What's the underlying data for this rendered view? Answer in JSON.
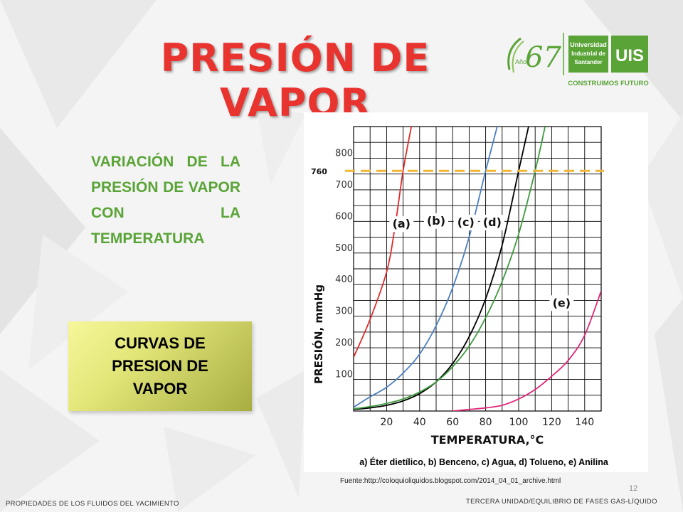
{
  "slide": {
    "title": "PRESIÓN DE VAPOR",
    "subtitle": "VARIACIÓN DE LA PRESIÓN DE VAPOR CON LA TEMPERATURA",
    "box_label": "CURVAS DE PRESION DE VAPOR",
    "caption": "a) Éter dietílico, b) Benceno, c) Agua, d) Tolueno, e) Anilina",
    "source": "Fuente:http://coloquioliquidos.blogspot.com/2014_04_01_archive.html",
    "page_number": "12",
    "footer_left": "PROPIEDADES DE LOS FLUIDOS DEL YACIMIENTO",
    "footer_right": "TERCERA UNIDAD/EQUILIBRIO DE FASES GAS-LÍQUIDO"
  },
  "logo": {
    "anniversary_number": "67",
    "anniversary_word": "Años",
    "university_line1": "Universidad",
    "university_line2": "Industrial de",
    "university_line3": "Santander",
    "initials": "UIS",
    "tagline": "CONSTRUIMOS FUTURO",
    "color": "#5aa437"
  },
  "colors": {
    "title": "#e8332f",
    "subtitle": "#5aa437",
    "reference_line": "#f2b632"
  },
  "chart_data": {
    "type": "line",
    "xlabel": "TEMPERATURA,°C",
    "ylabel": "PRESIÓN, mmHg",
    "xlim": [
      0,
      150
    ],
    "ylim": [
      0,
      900
    ],
    "x_ticks": [
      20,
      40,
      60,
      80,
      100,
      120,
      140
    ],
    "y_ticks": [
      100,
      200,
      300,
      400,
      500,
      600,
      700,
      800
    ],
    "grid": true,
    "reference_line": {
      "y": 760,
      "label": "760",
      "style": "dashed"
    },
    "series": [
      {
        "name": "(a)",
        "color": "#e02a2a",
        "points": [
          [
            0,
            170
          ],
          [
            10,
            290
          ],
          [
            20,
            440
          ],
          [
            25,
            580
          ],
          [
            30,
            760
          ],
          [
            35,
            900
          ]
        ]
      },
      {
        "name": "(b)",
        "color": "#4a7fc1",
        "points": [
          [
            0,
            12
          ],
          [
            10,
            45
          ],
          [
            20,
            75
          ],
          [
            30,
            120
          ],
          [
            40,
            180
          ],
          [
            50,
            270
          ],
          [
            60,
            390
          ],
          [
            70,
            550
          ],
          [
            80,
            760
          ],
          [
            87,
            900
          ]
        ]
      },
      {
        "name": "(c)",
        "color": "#000000",
        "points": [
          [
            0,
            5
          ],
          [
            10,
            10
          ],
          [
            20,
            18
          ],
          [
            30,
            32
          ],
          [
            40,
            55
          ],
          [
            50,
            92
          ],
          [
            60,
            150
          ],
          [
            70,
            235
          ],
          [
            80,
            355
          ],
          [
            90,
            525
          ],
          [
            100,
            760
          ],
          [
            106,
            900
          ]
        ]
      },
      {
        "name": "(d)",
        "color": "#3e9a3e",
        "points": [
          [
            0,
            7
          ],
          [
            10,
            14
          ],
          [
            20,
            24
          ],
          [
            30,
            38
          ],
          [
            40,
            60
          ],
          [
            50,
            92
          ],
          [
            60,
            140
          ],
          [
            70,
            205
          ],
          [
            80,
            295
          ],
          [
            90,
            410
          ],
          [
            100,
            560
          ],
          [
            110,
            760
          ],
          [
            116,
            900
          ]
        ]
      },
      {
        "name": "(e)",
        "color": "#e0257a",
        "points": [
          [
            60,
            0
          ],
          [
            70,
            5
          ],
          [
            80,
            10
          ],
          [
            90,
            18
          ],
          [
            100,
            38
          ],
          [
            110,
            68
          ],
          [
            120,
            110
          ],
          [
            130,
            160
          ],
          [
            140,
            240
          ],
          [
            150,
            380
          ]
        ]
      }
    ],
    "annotations": [
      {
        "text": "(a)",
        "x": 29,
        "y": 580
      },
      {
        "text": "(b)",
        "x": 50,
        "y": 590
      },
      {
        "text": "(c)",
        "x": 68,
        "y": 585
      },
      {
        "text": "(d)",
        "x": 84,
        "y": 585
      },
      {
        "text": "(e)",
        "x": 126,
        "y": 330
      }
    ]
  }
}
